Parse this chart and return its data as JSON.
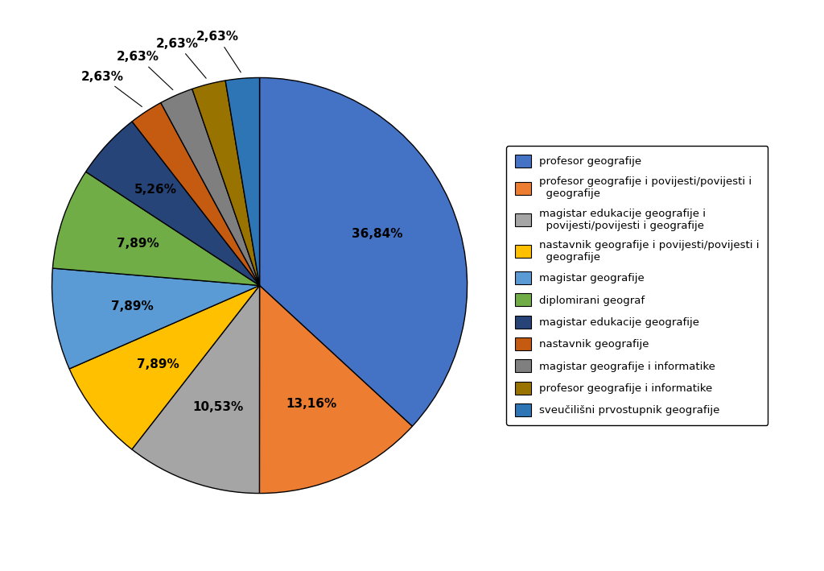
{
  "legend_labels": [
    "profesor geografije",
    "profesor geografije i povijesti/povijesti i\n  geografije",
    "magistar edukacije geografije i\n  povijesti/povijesti i geografije",
    "nastavnik geografije i povijesti/povijesti i\n  geografije",
    "magistar geografije",
    "diplomirani geograf",
    "magistar edukacije geografije",
    "nastavnik geografije",
    "magistar geografije i informatike",
    "profesor geografije i informatike",
    "sveučilišni prvostupnik geografije"
  ],
  "values": [
    36.84,
    13.16,
    10.53,
    7.89,
    7.89,
    7.89,
    5.26,
    2.63,
    2.63,
    2.63,
    2.63
  ],
  "pct_labels": [
    "36,84%",
    "13,16%",
    "10,53%",
    "7,89%",
    "7,89%",
    "7,89%",
    "5,26%",
    "2,63%",
    "2,63%",
    "2,63%",
    "2,63%"
  ],
  "colors": [
    "#4472C4",
    "#ED7D31",
    "#A5A5A5",
    "#FFC000",
    "#5B9BD5",
    "#70AD47",
    "#264478",
    "#C55A11",
    "#7F7F7F",
    "#997300",
    "#2E75B6"
  ],
  "background_color": "#FFFFFF",
  "edge_color": "#000000"
}
